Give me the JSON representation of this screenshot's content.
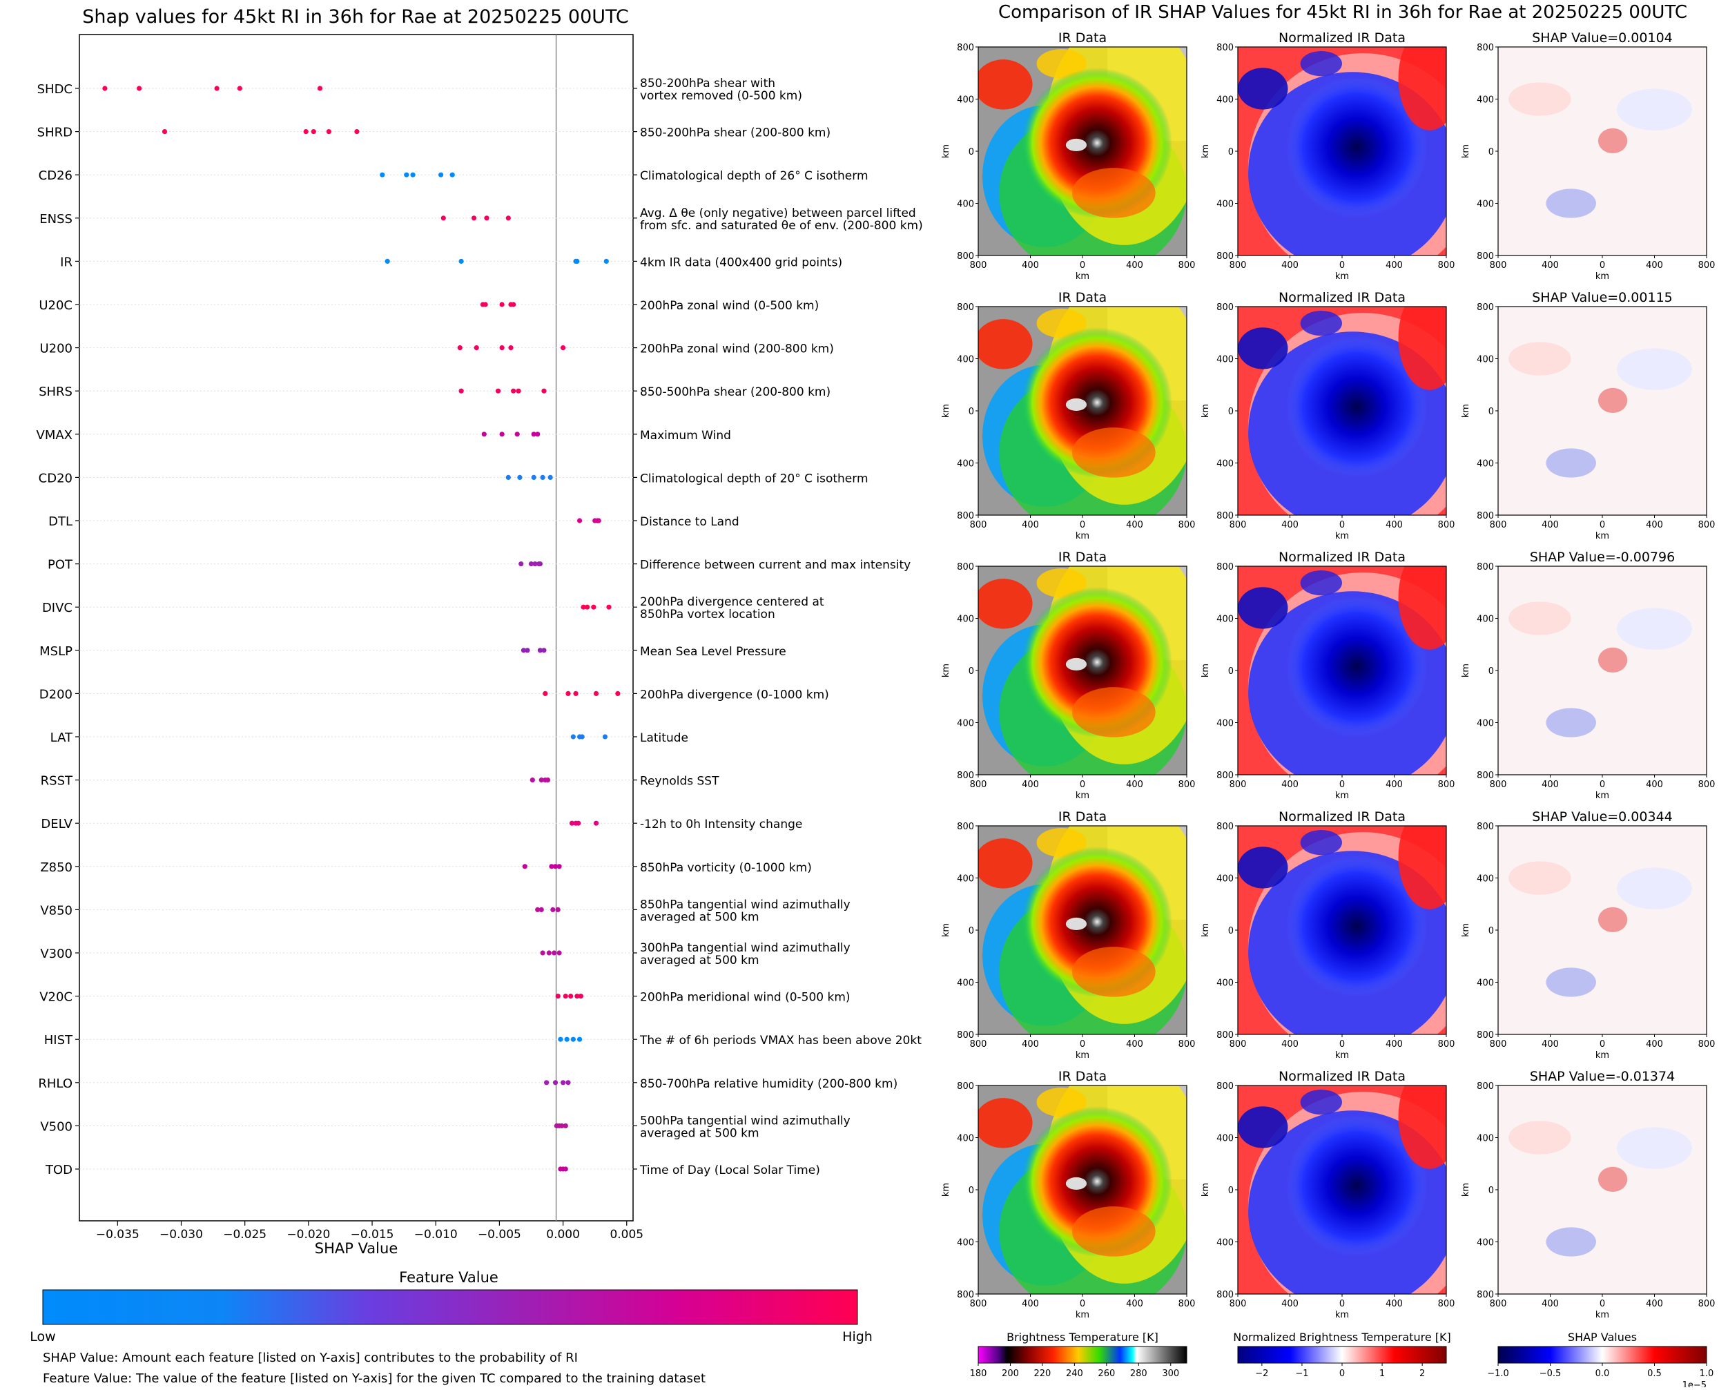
{
  "left_title": "Shap values for 45kt RI in 36h for Rae at 20250225 00UTC",
  "right_title": "Comparison of IR SHAP Values for 45kt RI in 36h for Rae at 20250225 00UTC",
  "footnote_shap": "SHAP Value: Amount each feature [listed on Y-axis] contributes to the probability of RI",
  "footnote_feature": "Feature Value: The value of the feature [listed on Y-axis] for the given TC compared to the training dataset",
  "colorbar": {
    "title": "Feature Value",
    "low_label": "Low",
    "high_label": "High",
    "colors": [
      "#008bfb",
      "#6a3ee0",
      "#a01eb3",
      "#d60094",
      "#ff0052"
    ]
  },
  "chart_data": [
    {
      "type": "scatter",
      "subtype": "shap-beeswarm",
      "title": "Shap values for 45kt RI in 36h for Rae at 20250225 00UTC",
      "xlabel": "SHAP Value",
      "xlim": [
        -0.038,
        0.0055
      ],
      "xticks": [
        -0.035,
        -0.03,
        -0.025,
        -0.02,
        -0.015,
        -0.01,
        -0.005,
        0.0,
        0.005
      ],
      "xtick_labels": [
        "−0.035",
        "−0.030",
        "−0.025",
        "−0.020",
        "−0.015",
        "−0.010",
        "−0.005",
        "0.000",
        "0.005"
      ],
      "zero_line": 0.0,
      "features": [
        {
          "name": "SHDC",
          "desc": [
            "850-200hPa shear with",
            "vortex removed (0-500 km)"
          ],
          "values": [
            -0.036,
            -0.0333,
            -0.0272,
            -0.0254,
            -0.0191
          ],
          "color": "#ff0052"
        },
        {
          "name": "SHRD",
          "desc": [
            "850-200hPa shear (200-800 km)"
          ],
          "values": [
            -0.0313,
            -0.0202,
            -0.0196,
            -0.0184,
            -0.0162
          ],
          "color": "#ff0052"
        },
        {
          "name": "CD26",
          "desc": [
            "Climatological depth of 26° C isotherm"
          ],
          "values": [
            -0.0142,
            -0.0123,
            -0.0118,
            -0.0096,
            -0.0087
          ],
          "color": "#008bfb"
        },
        {
          "name": "ENSS",
          "desc": [
            "Avg. Δ θe (only negative) between parcel lifted",
            "from sfc. and saturated θe of env. (200-800 km)"
          ],
          "values": [
            -0.0094,
            -0.007,
            -0.006,
            -0.0043
          ],
          "color": "#f6005e"
        },
        {
          "name": "IR",
          "desc": [
            "4km IR data (400x400 grid points)"
          ],
          "values": [
            -0.0138,
            -0.008,
            0.001,
            0.0011,
            0.0034
          ],
          "color": "#008bfb"
        },
        {
          "name": "U20C",
          "desc": [
            "200hPa zonal wind (0-500 km)"
          ],
          "values": [
            -0.0063,
            -0.0061,
            -0.0048,
            -0.0041,
            -0.0039
          ],
          "color": "#f6005e"
        },
        {
          "name": "U200",
          "desc": [
            "200hPa zonal wind (200-800 km)"
          ],
          "values": [
            -0.0081,
            -0.0068,
            -0.0048,
            -0.0041,
            0.0
          ],
          "color": "#f6005e"
        },
        {
          "name": "SHRS",
          "desc": [
            "850-500hPa shear (200-800 km)"
          ],
          "values": [
            -0.008,
            -0.0051,
            -0.0039,
            -0.0035,
            -0.0015
          ],
          "color": "#f6005e"
        },
        {
          "name": "VMAX",
          "desc": [
            "Maximum Wind"
          ],
          "values": [
            -0.0062,
            -0.0048,
            -0.0036,
            -0.0023,
            -0.002
          ],
          "color": "#c5009e"
        },
        {
          "name": "CD20",
          "desc": [
            "Climatological depth of 20° C isotherm"
          ],
          "values": [
            -0.0043,
            -0.0034,
            -0.0023,
            -0.0016,
            -0.001
          ],
          "color": "#1e7cf3"
        },
        {
          "name": "DTL",
          "desc": [
            "Distance to Land"
          ],
          "values": [
            0.0013,
            0.0025,
            0.0027,
            0.0028
          ],
          "color": "#d60094"
        },
        {
          "name": "POT",
          "desc": [
            "Difference between current and max intensity"
          ],
          "values": [
            -0.0033,
            -0.0025,
            -0.0022,
            -0.0019,
            -0.0018
          ],
          "color": "#a01eb3"
        },
        {
          "name": "DIVC",
          "desc": [
            "200hPa divergence centered at",
            "850hPa vortex location"
          ],
          "values": [
            0.0016,
            0.0019,
            0.0024,
            0.0036
          ],
          "color": "#ff0052"
        },
        {
          "name": "MSLP",
          "desc": [
            "Mean Sea Level Pressure"
          ],
          "values": [
            -0.0031,
            -0.0028,
            -0.0018,
            -0.0015
          ],
          "color": "#9320b8"
        },
        {
          "name": "D200",
          "desc": [
            "200hPa divergence (0-1000 km)"
          ],
          "values": [
            -0.0014,
            0.0004,
            0.001,
            0.0026,
            0.0043
          ],
          "color": "#ff0052"
        },
        {
          "name": "LAT",
          "desc": [
            "Latitude"
          ],
          "values": [
            0.0008,
            0.0013,
            0.0015,
            0.0033
          ],
          "color": "#1e7cf3"
        },
        {
          "name": "RSST",
          "desc": [
            "Reynolds SST"
          ],
          "values": [
            -0.0024,
            -0.0017,
            -0.0014,
            -0.0012
          ],
          "color": "#b9109e"
        },
        {
          "name": "DELV",
          "desc": [
            "-12h to 0h Intensity change"
          ],
          "values": [
            0.0007,
            0.001,
            0.0012,
            0.0026
          ],
          "color": "#e8007c"
        },
        {
          "name": "Z850",
          "desc": [
            "850hPa vorticity (0-1000 km)"
          ],
          "values": [
            -0.003,
            -0.0009,
            -0.0006,
            -0.0003
          ],
          "color": "#c5009e"
        },
        {
          "name": "V850",
          "desc": [
            "850hPa tangential wind azimuthally",
            "averaged at 500 km"
          ],
          "values": [
            -0.002,
            -0.0017,
            -0.0008,
            -0.0004
          ],
          "color": "#b9109e"
        },
        {
          "name": "V300",
          "desc": [
            "300hPa tangential wind azimuthally",
            "averaged at 500 km"
          ],
          "values": [
            -0.0016,
            -0.0011,
            -0.0007,
            -0.0003
          ],
          "color": "#b9109e"
        },
        {
          "name": "V20C",
          "desc": [
            "200hPa meridional wind (0-500 km)"
          ],
          "values": [
            -0.0004,
            0.0002,
            0.0006,
            0.0011,
            0.0014
          ],
          "color": "#f6005e"
        },
        {
          "name": "HIST",
          "desc": [
            "The # of 6h periods VMAX has been above 20kt"
          ],
          "values": [
            -0.0002,
            0.0003,
            0.0008,
            0.0013
          ],
          "color": "#008bfb"
        },
        {
          "name": "RHLO",
          "desc": [
            "850-700hPa relative humidity (200-800 km)"
          ],
          "values": [
            -0.0013,
            -0.0006,
            0.0,
            0.0004
          ],
          "color": "#a01eb3"
        },
        {
          "name": "V500",
          "desc": [
            "500hPa tangential wind azimuthally",
            "averaged at 500 km"
          ],
          "values": [
            -0.0005,
            -0.0003,
            -0.0001,
            0.0002
          ],
          "color": "#b9109e"
        },
        {
          "name": "TOD",
          "desc": [
            "Time of Day (Local Solar Time)"
          ],
          "values": [
            -0.0002,
            0.0,
            0.0002
          ],
          "color": "#c5009e"
        }
      ]
    },
    {
      "type": "heatmap",
      "subtype": "image-grid",
      "title": "Comparison of IR SHAP Values for 45kt RI in 36h for Rae at 20250225 00UTC",
      "columns": [
        "IR Data",
        "Normalized IR Data",
        "SHAP"
      ],
      "shap_titles": [
        "SHAP Value=0.00104",
        "SHAP Value=0.00115",
        "SHAP Value=-0.00796",
        "SHAP Value=0.00344",
        "SHAP Value=-0.01374"
      ],
      "xlabel": "km",
      "ylabel": "km",
      "tick_labels": [
        "800",
        "400",
        "0",
        "400",
        "800"
      ],
      "axis_range_km": [
        -800,
        800
      ],
      "colorbars": [
        {
          "label": "Brightness Temperature [K]",
          "ticks": [
            "180",
            "200",
            "220",
            "240",
            "260",
            "280",
            "300"
          ],
          "range": [
            180,
            310
          ]
        },
        {
          "label": "Normalized Brightness Temperature [K]",
          "ticks": [
            "−2",
            "−1",
            "0",
            "1",
            "2"
          ],
          "range": [
            -2.6,
            2.6
          ]
        },
        {
          "label": "SHAP Values",
          "ticks": [
            "−1.0",
            "−0.5",
            "0.0",
            "0.5",
            "1.0"
          ],
          "range": [
            -1.0,
            1.0
          ],
          "offset_label": "1e−5"
        }
      ]
    }
  ]
}
